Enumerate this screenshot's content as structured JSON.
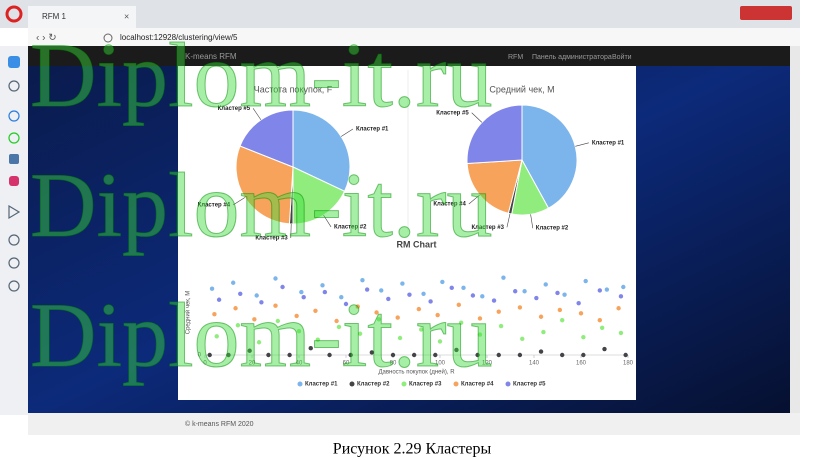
{
  "browser": {
    "tab_title": "RFM 1",
    "url": "localhost:12928/clustering/view/5"
  },
  "navbar": {
    "brand": "K-means RFM",
    "links": [
      "RFM",
      "Панель администратора",
      "Войти"
    ]
  },
  "chart_data": [
    {
      "type": "pie",
      "title": "Частота покупок, F",
      "categories": [
        "Кластер #1",
        "Кластер #2",
        "Кластер #3",
        "Кластер #4",
        "Кластер #5"
      ],
      "values": [
        32,
        18,
        1,
        30,
        19
      ],
      "colors": [
        "#7cb5ec",
        "#90ed7d",
        "#434348",
        "#f7a35c",
        "#8085e9"
      ]
    },
    {
      "type": "pie",
      "title": "Средний чек, M",
      "categories": [
        "Кластер #1",
        "Кластер #2",
        "Кластер #3",
        "Кластер #4",
        "Кластер #5"
      ],
      "values": [
        42,
        11,
        1,
        20,
        26
      ],
      "colors": [
        "#7cb5ec",
        "#90ed7d",
        "#434348",
        "#f7a35c",
        "#8085e9"
      ]
    },
    {
      "type": "scatter",
      "title": "RM Chart",
      "x_label": "Давность покупок (дней), R",
      "y_label": "Средний чек, М",
      "xlim": [
        0,
        180
      ],
      "xticks": [
        0,
        20,
        40,
        60,
        80,
        100,
        120,
        140,
        160,
        180
      ],
      "ylim": [
        0,
        100
      ],
      "yticks": [
        0
      ],
      "grid": true,
      "series": [
        {
          "name": "Кластер #1",
          "color": "#7cb5ec",
          "x": [
            3,
            12,
            22,
            30,
            41,
            50,
            58,
            67,
            75,
            84,
            93,
            101,
            110,
            118,
            127,
            136,
            145,
            153,
            162,
            171,
            178
          ],
          "values": [
            78,
            85,
            70,
            90,
            74,
            82,
            68,
            88,
            76,
            84,
            72,
            86,
            79,
            69,
            91,
            75,
            83,
            71,
            87,
            77,
            80
          ]
        },
        {
          "name": "Кластер #2",
          "color": "#434348",
          "x": [
            2,
            10,
            19,
            27,
            36,
            45,
            53,
            62,
            71,
            80,
            89,
            98,
            107,
            116,
            125,
            134,
            143,
            152,
            161,
            170,
            179
          ],
          "values": [
            0,
            0,
            5,
            0,
            0,
            8,
            0,
            0,
            3,
            0,
            0,
            0,
            6,
            0,
            0,
            0,
            4,
            0,
            0,
            7,
            0
          ]
        },
        {
          "name": "Кластер #3",
          "color": "#90ed7d",
          "x": [
            5,
            14,
            23,
            31,
            40,
            48,
            57,
            66,
            74,
            83,
            92,
            100,
            109,
            117,
            126,
            135,
            144,
            152,
            161,
            169,
            177
          ],
          "values": [
            22,
            35,
            15,
            40,
            28,
            18,
            33,
            25,
            42,
            20,
            30,
            16,
            38,
            24,
            34,
            19,
            27,
            41,
            21,
            32,
            26
          ]
        },
        {
          "name": "Кластер #4",
          "color": "#f7a35c",
          "x": [
            4,
            13,
            21,
            30,
            39,
            47,
            56,
            65,
            73,
            82,
            91,
            99,
            108,
            117,
            125,
            134,
            143,
            151,
            160,
            168,
            176
          ],
          "values": [
            48,
            55,
            42,
            58,
            46,
            52,
            40,
            57,
            50,
            44,
            54,
            47,
            59,
            43,
            51,
            56,
            45,
            53,
            49,
            41,
            55
          ]
        },
        {
          "name": "Кластер #5",
          "color": "#8085e9",
          "x": [
            6,
            15,
            24,
            33,
            42,
            51,
            60,
            69,
            78,
            87,
            96,
            105,
            114,
            123,
            132,
            141,
            150,
            159,
            168,
            177
          ],
          "values": [
            65,
            72,
            62,
            80,
            68,
            74,
            60,
            77,
            66,
            71,
            63,
            79,
            70,
            64,
            75,
            67,
            73,
            61,
            76,
            69
          ]
        }
      ]
    }
  ],
  "footer": "© k-means RFM 2020",
  "caption": "Рисунок 2.29 Кластеры",
  "watermark": "Diplom-it.ru"
}
